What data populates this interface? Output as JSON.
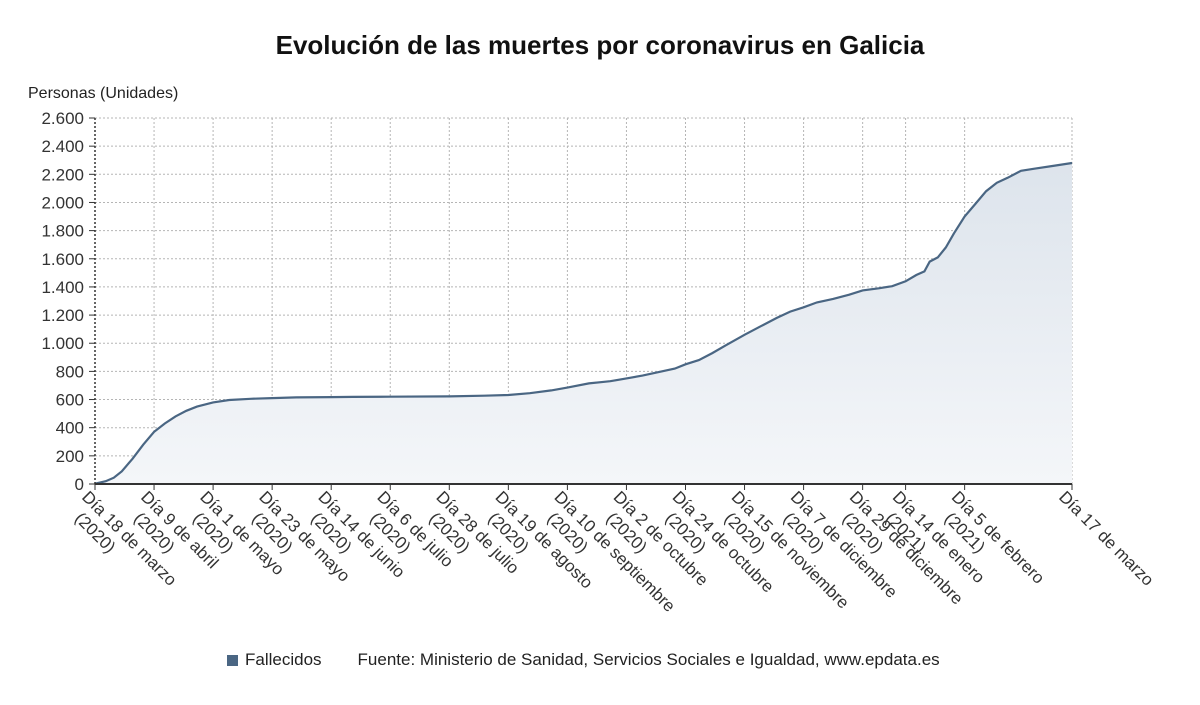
{
  "colors": {
    "line": "#4a6683",
    "fill_top": "#dde4ec",
    "fill_bottom": "#f4f6f9",
    "axis": "#333333"
  },
  "legend": {
    "series_label": "Fallecidos",
    "source": "Fuente: Ministerio de Sanidad, Servicios Sociales e Igualdad, www.epdata.es"
  },
  "chart_data": {
    "type": "area",
    "title": "Evolución de las muertes por coronavirus en Galicia",
    "ylabel": "Personas (Unidades)",
    "xlabel": "",
    "ylim": [
      0,
      2600
    ],
    "yticks": [
      0,
      200,
      400,
      600,
      800,
      1000,
      1200,
      1400,
      1600,
      1800,
      2000,
      2200,
      2400,
      2600
    ],
    "ytick_labels": [
      "0",
      "200",
      "400",
      "600",
      "800",
      "1.000",
      "1.200",
      "1.400",
      "1.600",
      "1.800",
      "2.000",
      "2.200",
      "2.400",
      "2.600"
    ],
    "xlim": [
      "2020-03-18",
      "2021-03-17"
    ],
    "grid": true,
    "legend_position": "bottom",
    "x_ticks": [
      {
        "date": "2020-03-18",
        "lines": [
          "Día 18 de marzo",
          "(2020)"
        ]
      },
      {
        "date": "2020-04-09",
        "lines": [
          "Día 9 de abril",
          "(2020)"
        ]
      },
      {
        "date": "2020-05-01",
        "lines": [
          "Día 1 de mayo",
          "(2020)"
        ]
      },
      {
        "date": "2020-05-23",
        "lines": [
          "Día 23 de mayo",
          "(2020)"
        ]
      },
      {
        "date": "2020-06-14",
        "lines": [
          "Día 14 de junio",
          "(2020)"
        ]
      },
      {
        "date": "2020-07-06",
        "lines": [
          "Día 6 de julio",
          "(2020)"
        ]
      },
      {
        "date": "2020-07-28",
        "lines": [
          "Día 28 de julio",
          "(2020)"
        ]
      },
      {
        "date": "2020-08-19",
        "lines": [
          "Día 19 de agosto",
          "(2020)"
        ]
      },
      {
        "date": "2020-09-10",
        "lines": [
          "Día 10 de septiembre",
          "(2020)"
        ]
      },
      {
        "date": "2020-10-02",
        "lines": [
          "Día 2 de octubre",
          "(2020)"
        ]
      },
      {
        "date": "2020-10-24",
        "lines": [
          "Día 24 de octubre",
          "(2020)"
        ]
      },
      {
        "date": "2020-11-15",
        "lines": [
          "Día 15 de noviembre",
          "(2020)"
        ]
      },
      {
        "date": "2020-12-07",
        "lines": [
          "Día 7 de diciembre",
          "(2020)"
        ]
      },
      {
        "date": "2020-12-29",
        "lines": [
          "Día 29 de diciembre",
          "(2020)"
        ]
      },
      {
        "date": "2021-01-14",
        "lines": [
          "Día 14 de enero",
          "(2021)"
        ]
      },
      {
        "date": "2021-02-05",
        "lines": [
          "Día 5 de febrero",
          "(2021)"
        ]
      },
      {
        "date": "2021-03-17",
        "lines": [
          "Día 17 de marzo"
        ]
      }
    ],
    "series": [
      {
        "name": "Fallecidos",
        "points": [
          [
            "2020-03-18",
            2
          ],
          [
            "2020-03-22",
            20
          ],
          [
            "2020-03-25",
            45
          ],
          [
            "2020-03-28",
            90
          ],
          [
            "2020-04-01",
            180
          ],
          [
            "2020-04-05",
            280
          ],
          [
            "2020-04-09",
            370
          ],
          [
            "2020-04-13",
            430
          ],
          [
            "2020-04-17",
            480
          ],
          [
            "2020-04-21",
            520
          ],
          [
            "2020-04-25",
            550
          ],
          [
            "2020-05-01",
            580
          ],
          [
            "2020-05-07",
            597
          ],
          [
            "2020-05-15",
            605
          ],
          [
            "2020-05-23",
            610
          ],
          [
            "2020-06-01",
            615
          ],
          [
            "2020-06-14",
            617
          ],
          [
            "2020-06-22",
            619
          ],
          [
            "2020-07-06",
            620
          ],
          [
            "2020-07-28",
            622
          ],
          [
            "2020-08-10",
            627
          ],
          [
            "2020-08-19",
            632
          ],
          [
            "2020-08-27",
            645
          ],
          [
            "2020-09-04",
            665
          ],
          [
            "2020-09-10",
            685
          ],
          [
            "2020-09-18",
            715
          ],
          [
            "2020-09-26",
            730
          ],
          [
            "2020-10-02",
            750
          ],
          [
            "2020-10-08",
            770
          ],
          [
            "2020-10-14",
            795
          ],
          [
            "2020-10-20",
            820
          ],
          [
            "2020-10-24",
            850
          ],
          [
            "2020-10-29",
            880
          ],
          [
            "2020-11-03",
            930
          ],
          [
            "2020-11-08",
            985
          ],
          [
            "2020-11-15",
            1060
          ],
          [
            "2020-11-21",
            1120
          ],
          [
            "2020-11-27",
            1180
          ],
          [
            "2020-12-02",
            1225
          ],
          [
            "2020-12-07",
            1255
          ],
          [
            "2020-12-12",
            1290
          ],
          [
            "2020-12-18",
            1315
          ],
          [
            "2020-12-24",
            1345
          ],
          [
            "2020-12-29",
            1375
          ],
          [
            "2021-01-04",
            1390
          ],
          [
            "2021-01-09",
            1405
          ],
          [
            "2021-01-14",
            1440
          ],
          [
            "2021-01-18",
            1485
          ],
          [
            "2021-01-21",
            1510
          ],
          [
            "2021-01-23",
            1580
          ],
          [
            "2021-01-26",
            1610
          ],
          [
            "2021-01-29",
            1680
          ],
          [
            "2021-02-01",
            1780
          ],
          [
            "2021-02-05",
            1900
          ],
          [
            "2021-02-09",
            1990
          ],
          [
            "2021-02-13",
            2080
          ],
          [
            "2021-02-17",
            2140
          ],
          [
            "2021-02-21",
            2175
          ],
          [
            "2021-02-26",
            2225
          ],
          [
            "2021-03-03",
            2240
          ],
          [
            "2021-03-10",
            2260
          ],
          [
            "2021-03-17",
            2280
          ]
        ]
      }
    ]
  }
}
